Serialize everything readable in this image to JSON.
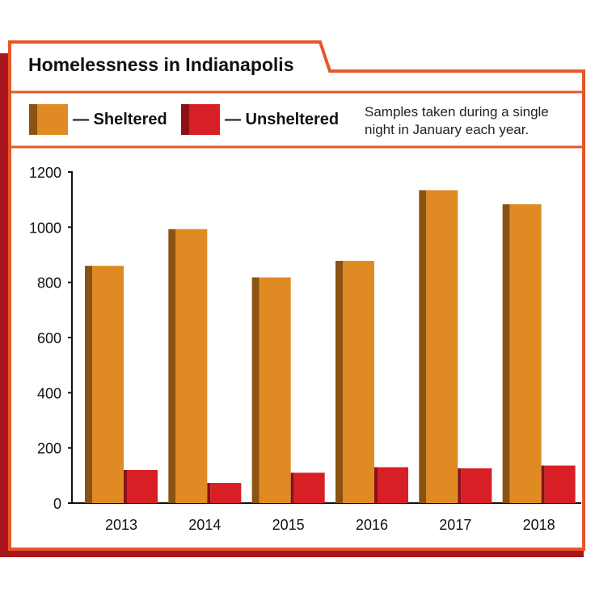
{
  "colors": {
    "sheltered": "#e08a24",
    "sheltered_shadow": "#8a5312",
    "unsheltered": "#d81f26",
    "unsheltered_shadow": "#8c1016",
    "frame": "#e5582a",
    "frame_shadow": "#a8161c",
    "axis": "#111111"
  },
  "legend": {
    "sheltered_label": "— Sheltered",
    "unsheltered_label": "— Unsheltered"
  },
  "note": {
    "line1": "Samples taken during a single",
    "line2": "night in January each year."
  },
  "chart_data": {
    "type": "bar",
    "title": "Homelessness in Indianapolis",
    "categories": [
      "2013",
      "2014",
      "2015",
      "2016",
      "2017",
      "2018"
    ],
    "series": [
      {
        "name": "Sheltered",
        "values": [
          860,
          993,
          818,
          878,
          1134,
          1083
        ]
      },
      {
        "name": "Unsheltered",
        "values": [
          120,
          73,
          110,
          130,
          126,
          136
        ]
      }
    ],
    "ylim": [
      0,
      1200
    ],
    "yticks": [
      0,
      200,
      400,
      600,
      800,
      1000,
      1200
    ],
    "xlabel": "",
    "ylabel": "",
    "grid": false,
    "legend_position": "top"
  }
}
